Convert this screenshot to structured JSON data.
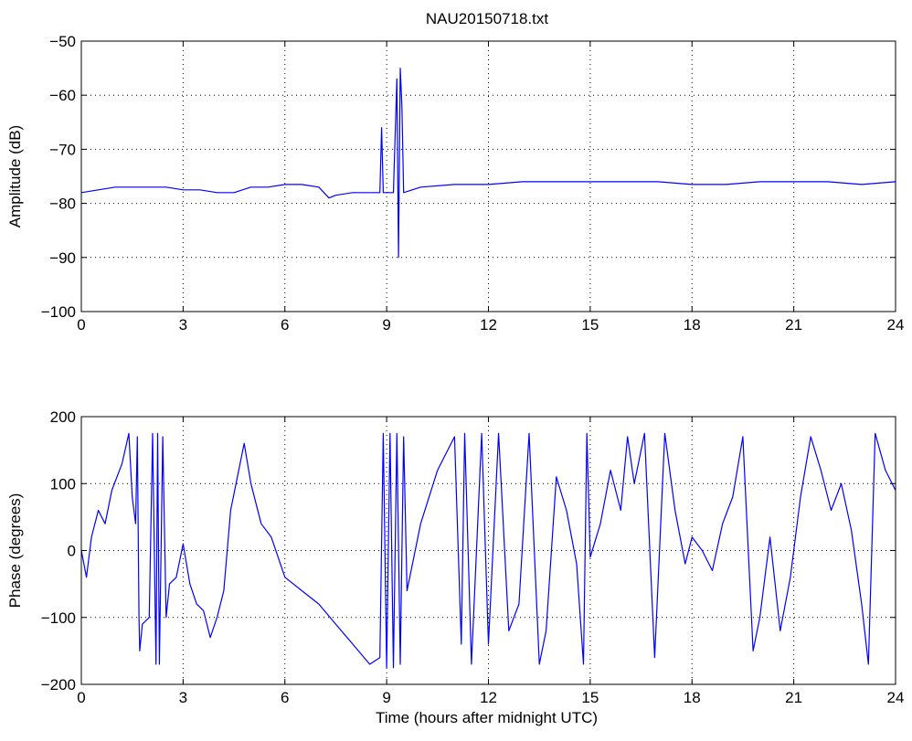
{
  "figure_title": "NAU20150718.txt",
  "chart_data": [
    {
      "id": "amplitude",
      "type": "line",
      "title": "NAU20150718.txt",
      "xlabel": "",
      "ylabel": "Amplitude (dB)",
      "xlim": [
        0,
        24
      ],
      "ylim": [
        -100,
        -50
      ],
      "xticks": [
        0,
        3,
        6,
        9,
        12,
        15,
        18,
        21,
        24
      ],
      "yticks": [
        -100,
        -90,
        -80,
        -70,
        -60,
        -50
      ],
      "xtick_labels": [
        "0",
        "3",
        "6",
        "9",
        "12",
        "15",
        "18",
        "21",
        "24"
      ],
      "ytick_labels": [
        "−100",
        "−90",
        "−80",
        "−70",
        "−60",
        "−50"
      ],
      "grid": true,
      "line_color": "#0000ff",
      "series": [
        {
          "x": [
            0,
            0.5,
            1,
            1.5,
            2,
            2.5,
            3,
            3.5,
            4,
            4.5,
            5,
            5.5,
            6,
            6.5,
            7,
            7.3,
            7.5,
            8,
            8.5,
            8.8,
            8.85,
            8.9,
            9,
            9.2,
            9.3,
            9.35,
            9.4,
            9.45,
            9.5,
            10,
            11,
            12,
            13,
            14,
            15,
            16,
            17,
            18,
            19,
            20,
            21,
            22,
            23,
            24
          ],
          "y": [
            -78,
            -77.5,
            -77,
            -77,
            -77,
            -77,
            -77.5,
            -77.5,
            -78,
            -78,
            -77,
            -77,
            -76.5,
            -76.5,
            -77,
            -79,
            -78.5,
            -78,
            -78,
            -78,
            -66,
            -78,
            -78,
            -78,
            -57,
            -90,
            -55,
            -62,
            -78,
            -77,
            -76.5,
            -76.5,
            -76,
            -76,
            -76,
            -76,
            -76,
            -76.5,
            -76.5,
            -76,
            -76,
            -76,
            -76.5,
            -76
          ]
        }
      ]
    },
    {
      "id": "phase",
      "type": "line",
      "title": "",
      "xlabel": "Time (hours after midnight UTC)",
      "ylabel": "Phase (degrees)",
      "xlim": [
        0,
        24
      ],
      "ylim": [
        -200,
        200
      ],
      "xticks": [
        0,
        3,
        6,
        9,
        12,
        15,
        18,
        21,
        24
      ],
      "yticks": [
        -200,
        -100,
        0,
        100,
        200
      ],
      "xtick_labels": [
        "0",
        "3",
        "6",
        "9",
        "12",
        "15",
        "18",
        "21",
        "24"
      ],
      "ytick_labels": [
        "−200",
        "−100",
        "0",
        "100",
        "200"
      ],
      "grid": true,
      "line_color": "#0000ff",
      "series": [
        {
          "x": [
            0,
            0.15,
            0.3,
            0.5,
            0.7,
            0.9,
            1.2,
            1.4,
            1.5,
            1.6,
            1.65,
            1.7,
            1.72,
            1.8,
            2.0,
            2.1,
            2.2,
            2.25,
            2.3,
            2.4,
            2.5,
            2.6,
            2.8,
            3.0,
            3.2,
            3.4,
            3.6,
            3.8,
            4.0,
            4.2,
            4.4,
            4.6,
            4.8,
            5.0,
            5.3,
            5.6,
            6.0,
            6.5,
            7.0,
            7.5,
            8.0,
            8.5,
            8.8,
            8.9,
            9.0,
            9.1,
            9.2,
            9.3,
            9.4,
            9.5,
            9.6,
            10.0,
            10.5,
            11.0,
            11.2,
            11.3,
            11.5,
            11.8,
            12.0,
            12.3,
            12.6,
            12.9,
            13.2,
            13.5,
            13.7,
            14.0,
            14.3,
            14.6,
            14.8,
            14.9,
            15.0,
            15.3,
            15.6,
            15.9,
            16.1,
            16.3,
            16.6,
            16.9,
            17.2,
            17.5,
            17.8,
            18.0,
            18.3,
            18.6,
            18.9,
            19.2,
            19.5,
            19.8,
            20.0,
            20.3,
            20.6,
            20.9,
            21.2,
            21.5,
            21.8,
            22.1,
            22.4,
            22.7,
            23.0,
            23.2,
            23.4,
            23.7,
            24.0
          ],
          "y": [
            0,
            -40,
            20,
            60,
            40,
            90,
            130,
            175,
            80,
            40,
            170,
            -100,
            -150,
            -110,
            -100,
            175,
            -170,
            175,
            -170,
            170,
            -100,
            -50,
            -40,
            10,
            -50,
            -80,
            -90,
            -130,
            -100,
            -60,
            60,
            110,
            160,
            100,
            40,
            20,
            -40,
            -60,
            -80,
            -110,
            -140,
            -170,
            -160,
            175,
            -175,
            175,
            -175,
            175,
            -170,
            170,
            -60,
            40,
            120,
            170,
            -140,
            175,
            -170,
            175,
            -140,
            175,
            -120,
            -80,
            175,
            -170,
            -120,
            110,
            60,
            -20,
            -170,
            175,
            -10,
            40,
            120,
            60,
            170,
            100,
            175,
            -160,
            175,
            60,
            -20,
            20,
            0,
            -30,
            40,
            80,
            170,
            -150,
            -100,
            20,
            -120,
            -40,
            80,
            170,
            120,
            60,
            100,
            30,
            -80,
            -170,
            175,
            120,
            90
          ]
        }
      ]
    }
  ]
}
